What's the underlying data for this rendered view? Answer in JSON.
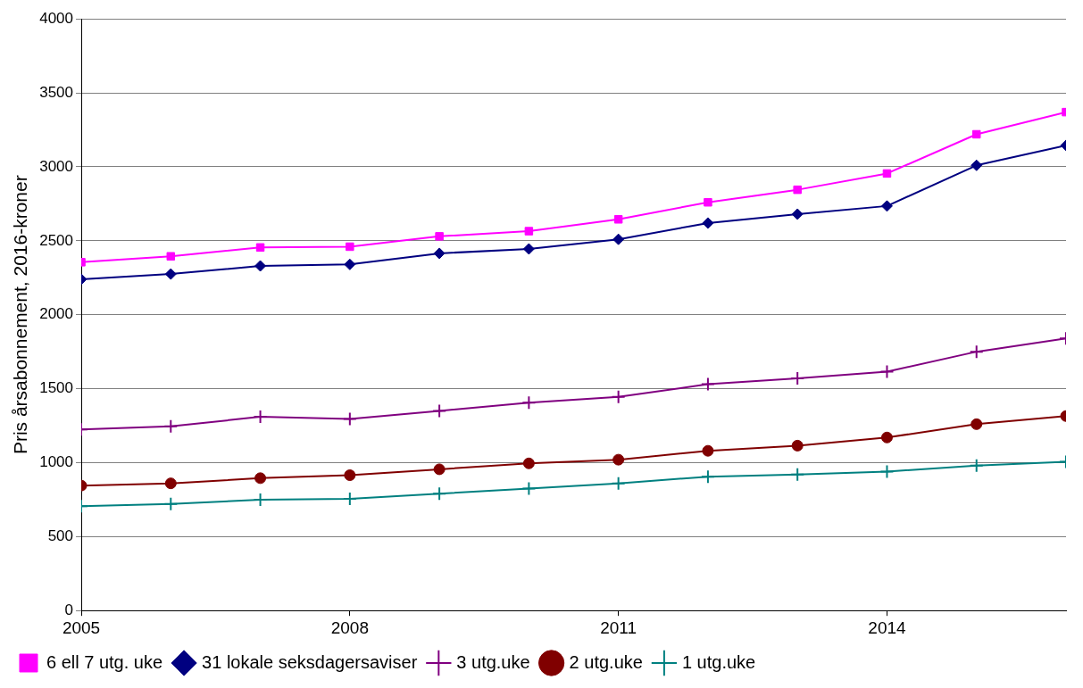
{
  "chart_data": {
    "type": "line",
    "ylabel": "Pris årsabonnement, 2016-kroner",
    "x": [
      2005,
      2006,
      2007,
      2008,
      2009,
      2010,
      2011,
      2012,
      2013,
      2014,
      2015,
      2016
    ],
    "xlim": [
      2005,
      2016
    ],
    "xticks": [
      2005,
      2008,
      2011,
      2014
    ],
    "ylim": [
      0,
      4000
    ],
    "yticks": [
      0,
      500,
      1000,
      1500,
      2000,
      2500,
      3000,
      3500,
      4000
    ],
    "grid": "y",
    "legend": "bottom",
    "line_style": "solid",
    "series": [
      {
        "name": "6 ell 7 utg. uke",
        "color": "#ff00ff",
        "marker": "square",
        "values": [
          2355,
          2395,
          2455,
          2460,
          2530,
          2565,
          2645,
          2760,
          2845,
          2955,
          3220,
          3370
        ]
      },
      {
        "name": "31 lokale seksdagersaviser",
        "color": "#000080",
        "marker": "diamond",
        "values": [
          2240,
          2275,
          2330,
          2340,
          2415,
          2445,
          2510,
          2620,
          2680,
          2735,
          3010,
          3145
        ]
      },
      {
        "name": "3 utg.uke",
        "color": "#800080",
        "marker": "cross",
        "values": [
          1225,
          1245,
          1310,
          1295,
          1350,
          1405,
          1445,
          1530,
          1570,
          1615,
          1750,
          1840
        ]
      },
      {
        "name": "2 utg.uke",
        "color": "#800000",
        "marker": "circle",
        "values": [
          845,
          860,
          895,
          915,
          955,
          995,
          1020,
          1080,
          1115,
          1170,
          1260,
          1315
        ]
      },
      {
        "name": "1 utg.uke",
        "color": "#008080",
        "marker": "cross",
        "values": [
          705,
          720,
          750,
          755,
          790,
          825,
          860,
          905,
          920,
          940,
          980,
          1005
        ]
      }
    ]
  }
}
